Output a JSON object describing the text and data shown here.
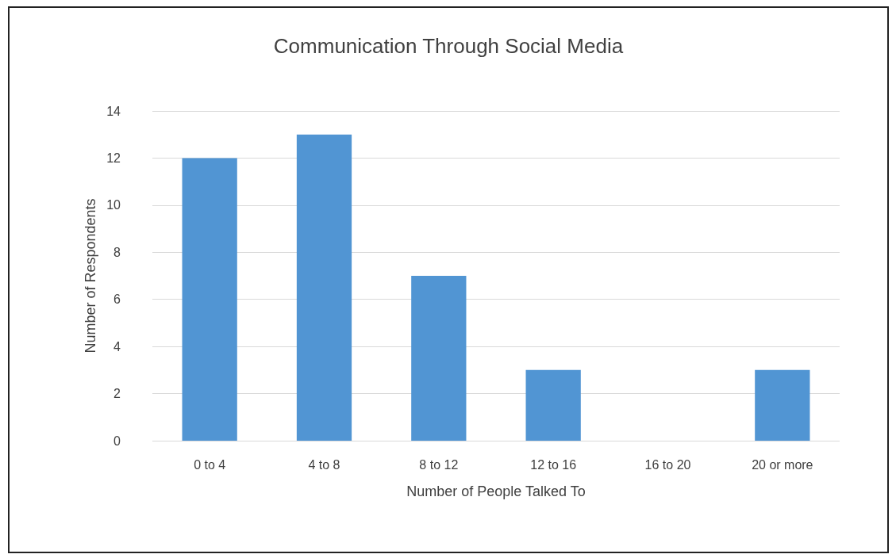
{
  "chart_data": {
    "type": "bar",
    "title": "Communication Through Social Media",
    "xlabel": "Number of People Talked To",
    "ylabel": "Number of Respondents",
    "categories": [
      "0 to 4",
      "4 to 8",
      "8 to 12",
      "12 to 16",
      "16 to 20",
      "20 or more"
    ],
    "values": [
      12,
      13,
      7,
      3,
      0,
      3
    ],
    "color": "#5195d3",
    "ylim": [
      0,
      14
    ],
    "yticks": [
      0,
      2,
      4,
      6,
      8,
      10,
      12,
      14
    ],
    "grid": "y"
  }
}
